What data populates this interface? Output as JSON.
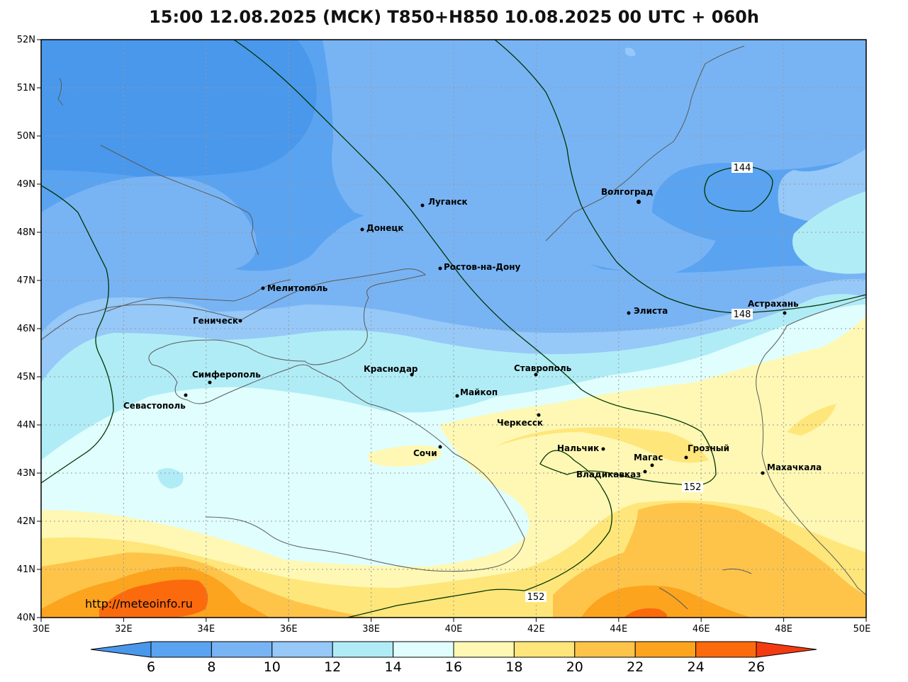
{
  "title": "15:00 12.08.2025 (МСК) T850+H850 10.08.2025 00 UTC + 060h",
  "watermark": "http://meteoinfo.ru",
  "axes": {
    "lat_labels": [
      "52N",
      "51N",
      "50N",
      "49N",
      "48N",
      "47N",
      "46N",
      "45N",
      "44N",
      "43N",
      "42N",
      "41N",
      "40N"
    ],
    "lon_labels": [
      "30E",
      "32E",
      "34E",
      "36E",
      "38E",
      "40E",
      "42E",
      "44E",
      "46E",
      "48E",
      "50E"
    ]
  },
  "colorbar": {
    "labels": [
      "6",
      "8",
      "10",
      "12",
      "14",
      "16",
      "18",
      "20",
      "22",
      "24",
      "26"
    ],
    "colors": [
      "#4a98ec",
      "#5aa3f0",
      "#78b4f4",
      "#96c8f8",
      "#b0ecf6",
      "#e0fefe",
      "#fef8b4",
      "#fee67a",
      "#fec44a",
      "#fca41e",
      "#fc6a0e",
      "#f43a10"
    ]
  },
  "cities": [
    {
      "name": "Волгоград"
    },
    {
      "name": "Луганск"
    },
    {
      "name": "Донецк"
    },
    {
      "name": "Ростов-на-Дону"
    },
    {
      "name": "Мелитополь"
    },
    {
      "name": "Элиста"
    },
    {
      "name": "Астрахань"
    },
    {
      "name": "Геническ"
    },
    {
      "name": "Краснодар"
    },
    {
      "name": "Ставрополь"
    },
    {
      "name": "Симферополь"
    },
    {
      "name": "Майкоп"
    },
    {
      "name": "Севастополь"
    },
    {
      "name": "Черкесск"
    },
    {
      "name": "Сочи"
    },
    {
      "name": "Нальчик"
    },
    {
      "name": "Магас"
    },
    {
      "name": "Грозный"
    },
    {
      "name": "Владикавказ"
    },
    {
      "name": "Махачкала"
    }
  ],
  "contour_labels": [
    "144",
    "148",
    "152",
    "152"
  ]
}
